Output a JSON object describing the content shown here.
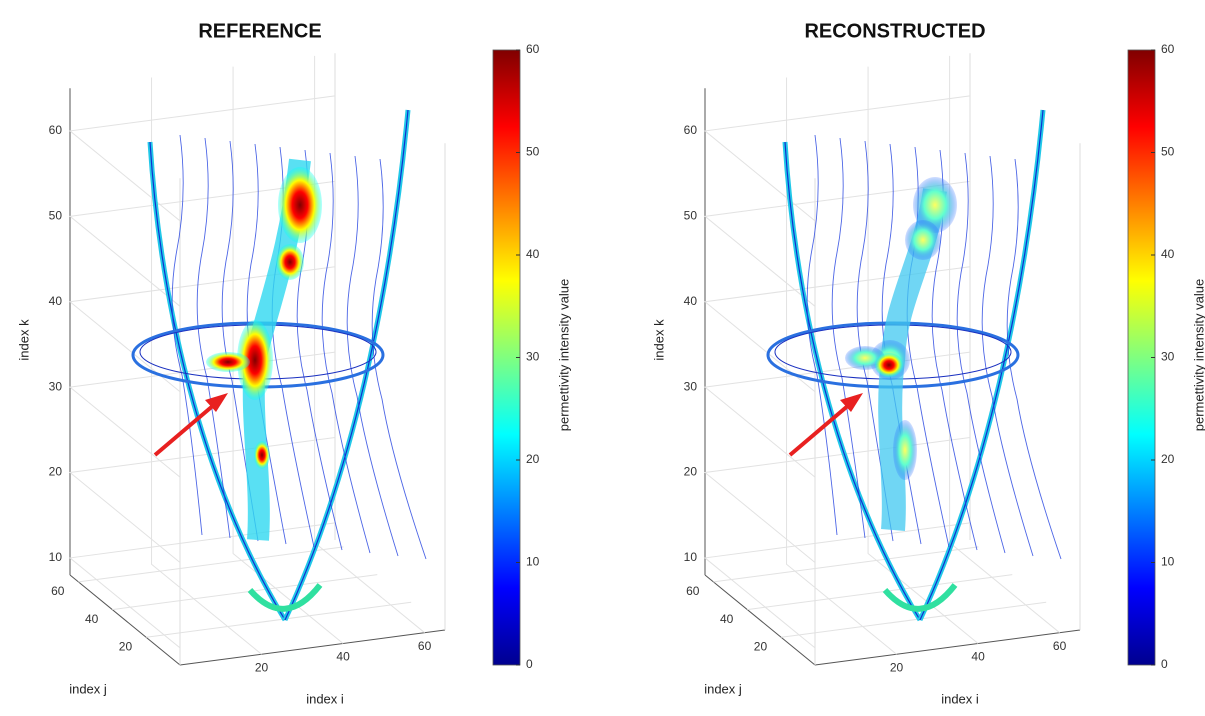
{
  "chart_data": [
    {
      "type": "contour3d",
      "title": "REFERENCE",
      "xlabel": "index i",
      "ylabel": "index j",
      "zlabel": "index k",
      "xlim": [
        0,
        65
      ],
      "ylim": [
        0,
        65
      ],
      "zlim": [
        8,
        65
      ],
      "xticks": [
        20,
        40,
        60
      ],
      "yticks": [
        20,
        40,
        60
      ],
      "zticks": [
        10,
        20,
        30,
        40,
        50,
        60
      ],
      "colormap": "jet",
      "colorbar_label": "permettivity intensity value",
      "clim": [
        0,
        60
      ],
      "cticks": [
        0,
        10,
        20,
        30,
        40,
        50,
        60
      ],
      "grid": true
    },
    {
      "type": "contour3d",
      "title": "RECONSTRUCTED",
      "xlabel": "index i",
      "ylabel": "index j",
      "zlabel": "index k",
      "xlim": [
        0,
        65
      ],
      "ylim": [
        0,
        65
      ],
      "zlim": [
        8,
        65
      ],
      "xticks": [
        20,
        40,
        60
      ],
      "yticks": [
        20,
        40,
        60
      ],
      "zticks": [
        10,
        20,
        30,
        40,
        50,
        60
      ],
      "colormap": "jet",
      "colorbar_label": "permettivity intensity value",
      "clim": [
        0,
        60
      ],
      "cticks": [
        0,
        10,
        20,
        30,
        40,
        50,
        60
      ],
      "grid": true
    }
  ]
}
